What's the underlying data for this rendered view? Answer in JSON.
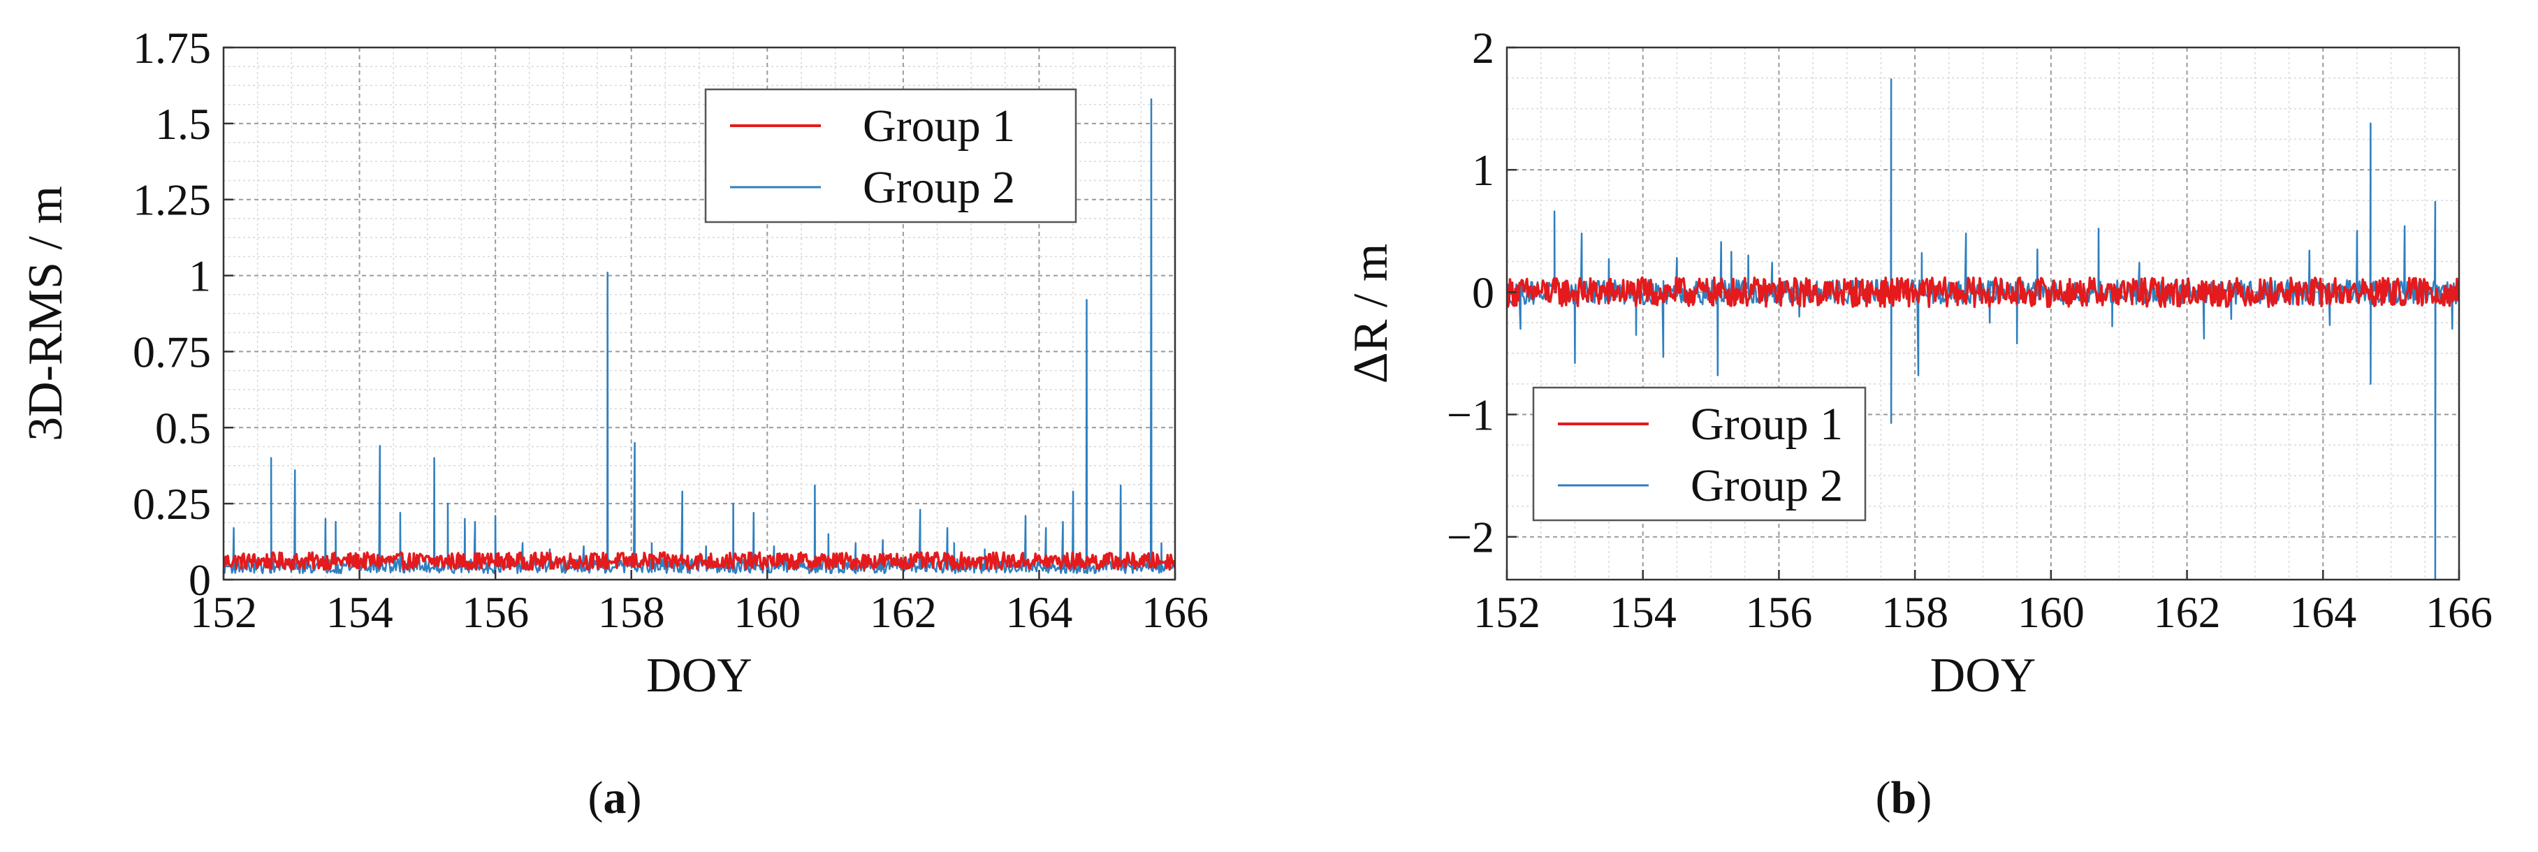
{
  "colors": {
    "group1": "#e41a1c",
    "group2": "#2e7fc0",
    "grid": "#9a9a9a",
    "axis": "#333333",
    "text": "#111111"
  },
  "chart_data": [
    {
      "type": "line",
      "panel_label": "a",
      "xlabel": "DOY",
      "ylabel": "3D-RMS / m",
      "xlim": [
        152,
        166
      ],
      "ylim": [
        0,
        1.75
      ],
      "xticks": [
        152,
        154,
        156,
        158,
        160,
        162,
        164,
        166
      ],
      "xtick_labels": [
        "152",
        "154",
        "156",
        "158",
        "160",
        "162",
        "164",
        "166"
      ],
      "yticks": [
        0,
        0.25,
        0.5,
        0.75,
        1,
        1.25,
        1.5,
        1.75
      ],
      "ytick_labels": [
        "0",
        "0.25",
        "0.5",
        "0.75",
        "1",
        "1.25",
        "1.5",
        "1.75"
      ],
      "grid": true,
      "legend_position": "top-right",
      "series": [
        {
          "name": "Group 1",
          "color": "#e41a1c",
          "baseline": 0.05,
          "noise_amp": 0.035,
          "spikes": []
        },
        {
          "name": "Group 2",
          "color": "#2e7fc0",
          "baseline": 0.035,
          "noise_amp": 0.03,
          "spikes": [
            {
              "x": 152.15,
              "y": 0.17
            },
            {
              "x": 152.7,
              "y": 0.4
            },
            {
              "x": 153.05,
              "y": 0.36
            },
            {
              "x": 153.5,
              "y": 0.2
            },
            {
              "x": 153.65,
              "y": 0.19
            },
            {
              "x": 154.3,
              "y": 0.44
            },
            {
              "x": 154.6,
              "y": 0.22
            },
            {
              "x": 155.1,
              "y": 0.4
            },
            {
              "x": 155.3,
              "y": 0.25
            },
            {
              "x": 155.55,
              "y": 0.2
            },
            {
              "x": 155.7,
              "y": 0.19
            },
            {
              "x": 156.0,
              "y": 0.21
            },
            {
              "x": 156.4,
              "y": 0.12
            },
            {
              "x": 156.8,
              "y": 0.1
            },
            {
              "x": 157.3,
              "y": 0.11
            },
            {
              "x": 157.65,
              "y": 1.01
            },
            {
              "x": 158.05,
              "y": 0.45
            },
            {
              "x": 158.3,
              "y": 0.12
            },
            {
              "x": 158.75,
              "y": 0.29
            },
            {
              "x": 159.1,
              "y": 0.11
            },
            {
              "x": 159.5,
              "y": 0.25
            },
            {
              "x": 159.8,
              "y": 0.22
            },
            {
              "x": 160.1,
              "y": 0.11
            },
            {
              "x": 160.7,
              "y": 0.31
            },
            {
              "x": 160.9,
              "y": 0.15
            },
            {
              "x": 161.3,
              "y": 0.12
            },
            {
              "x": 161.7,
              "y": 0.13
            },
            {
              "x": 162.25,
              "y": 0.23
            },
            {
              "x": 162.65,
              "y": 0.17
            },
            {
              "x": 162.75,
              "y": 0.12
            },
            {
              "x": 163.2,
              "y": 0.1
            },
            {
              "x": 163.8,
              "y": 0.21
            },
            {
              "x": 164.1,
              "y": 0.17
            },
            {
              "x": 164.35,
              "y": 0.19
            },
            {
              "x": 164.5,
              "y": 0.29
            },
            {
              "x": 164.7,
              "y": 0.92
            },
            {
              "x": 165.2,
              "y": 0.31
            },
            {
              "x": 165.65,
              "y": 1.58
            },
            {
              "x": 165.8,
              "y": 0.12
            }
          ]
        }
      ]
    },
    {
      "type": "line",
      "panel_label": "b",
      "xlabel": "DOY",
      "ylabel": "ΔR / m",
      "xlim": [
        152,
        166
      ],
      "ylim": [
        -2.35,
        2
      ],
      "xticks": [
        152,
        154,
        156,
        158,
        160,
        162,
        164,
        166
      ],
      "xtick_labels": [
        "152",
        "154",
        "156",
        "158",
        "160",
        "162",
        "164",
        "166"
      ],
      "yticks": [
        -2,
        -1,
        0,
        1,
        2
      ],
      "ytick_labels": [
        "−2",
        "−1",
        "0",
        "1",
        "2"
      ],
      "grid": true,
      "legend_position": "bottom-left",
      "series": [
        {
          "name": "Group 1",
          "color": "#e41a1c",
          "baseline": 0,
          "noise_amp": 0.12,
          "spikes": []
        },
        {
          "name": "Group 2",
          "color": "#2e7fc0",
          "baseline": 0,
          "noise_amp": 0.1,
          "spikes": [
            {
              "x": 152.2,
              "y": -0.3
            },
            {
              "x": 152.7,
              "y": 0.66
            },
            {
              "x": 153.0,
              "y": -0.58
            },
            {
              "x": 153.1,
              "y": 0.48
            },
            {
              "x": 153.5,
              "y": 0.27
            },
            {
              "x": 153.9,
              "y": -0.35
            },
            {
              "x": 154.3,
              "y": -0.53
            },
            {
              "x": 154.5,
              "y": 0.28
            },
            {
              "x": 155.1,
              "y": -0.68
            },
            {
              "x": 155.15,
              "y": 0.41
            },
            {
              "x": 155.3,
              "y": 0.33
            },
            {
              "x": 155.55,
              "y": 0.3
            },
            {
              "x": 155.9,
              "y": 0.24
            },
            {
              "x": 156.3,
              "y": -0.2
            },
            {
              "x": 157.65,
              "y": 1.74
            },
            {
              "x": 157.65,
              "y": -1.07
            },
            {
              "x": 158.05,
              "y": -0.68
            },
            {
              "x": 158.1,
              "y": 0.32
            },
            {
              "x": 158.75,
              "y": 0.48
            },
            {
              "x": 159.1,
              "y": -0.25
            },
            {
              "x": 159.5,
              "y": -0.42
            },
            {
              "x": 159.8,
              "y": 0.35
            },
            {
              "x": 160.7,
              "y": 0.52
            },
            {
              "x": 160.9,
              "y": -0.28
            },
            {
              "x": 161.3,
              "y": 0.24
            },
            {
              "x": 162.25,
              "y": -0.38
            },
            {
              "x": 162.65,
              "y": -0.22
            },
            {
              "x": 163.8,
              "y": 0.34
            },
            {
              "x": 164.1,
              "y": -0.27
            },
            {
              "x": 164.5,
              "y": 0.5
            },
            {
              "x": 164.7,
              "y": 1.38
            },
            {
              "x": 164.7,
              "y": -0.75
            },
            {
              "x": 165.2,
              "y": 0.54
            },
            {
              "x": 165.65,
              "y": 0.74
            },
            {
              "x": 165.65,
              "y": -2.35
            },
            {
              "x": 165.9,
              "y": -0.3
            }
          ]
        }
      ]
    }
  ]
}
